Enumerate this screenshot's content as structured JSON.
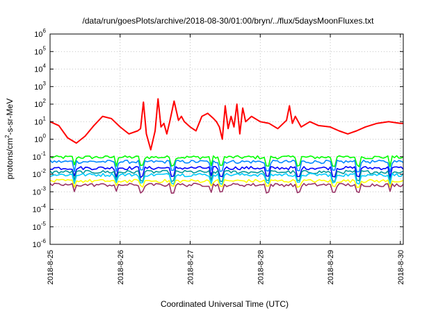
{
  "chart_data": {
    "type": "line",
    "title": "/data/run/goesPlots/archive/2018-08-30/01:00/bryn/../flux/5daysMoonFluxes.txt",
    "xlabel": "Coordinated Universal Time (UTC)",
    "ylabel": {
      "base": "protons/cm",
      "sup": "2",
      "rest": "-s-sr-MeV"
    },
    "y_scale": "log",
    "ylim": [
      1e-06,
      1000000.0
    ],
    "y_ticks": [
      {
        "exp": -6,
        "label_base": "10",
        "label_exp": "-6"
      },
      {
        "exp": -5,
        "label_base": "10",
        "label_exp": "-5"
      },
      {
        "exp": -4,
        "label_base": "10",
        "label_exp": "-4"
      },
      {
        "exp": -3,
        "label_base": "10",
        "label_exp": "-3"
      },
      {
        "exp": -2,
        "label_base": "10",
        "label_exp": "-2"
      },
      {
        "exp": -1,
        "label_base": "10",
        "label_exp": "-1"
      },
      {
        "exp": 0,
        "label_base": "10",
        "label_exp": "0"
      },
      {
        "exp": 1,
        "label_base": "10",
        "label_exp": "1"
      },
      {
        "exp": 2,
        "label_base": "10",
        "label_exp": "2"
      },
      {
        "exp": 3,
        "label_base": "10",
        "label_exp": "3"
      },
      {
        "exp": 4,
        "label_base": "10",
        "label_exp": "4"
      },
      {
        "exp": 5,
        "label_base": "10",
        "label_exp": "5"
      },
      {
        "exp": 6,
        "label_base": "10",
        "label_exp": "6"
      }
    ],
    "x_ticks": [
      "2018-8-25",
      "2018-8-26",
      "2018-8-27",
      "2018-8-28",
      "2018-8-29",
      "2018-8-30"
    ],
    "xlim": [
      "2018-08-25 00:00",
      "2018-08-30 01:00"
    ],
    "grid": true,
    "legend": "none",
    "series": [
      {
        "color": "#ff0000",
        "x": [
          "2018-08-25 00:00",
          "2018-08-25 03:00",
          "2018-08-25 06:00",
          "2018-08-25 09:00",
          "2018-08-25 12:00",
          "2018-08-25 15:00",
          "2018-08-25 18:00",
          "2018-08-25 21:00",
          "2018-08-26 00:00",
          "2018-08-26 03:00",
          "2018-08-26 06:00",
          "2018-08-26 07:00",
          "2018-08-26 08:00",
          "2018-08-26 09:00",
          "2018-08-26 10:30",
          "2018-08-26 12:00",
          "2018-08-26 13:00",
          "2018-08-26 14:00",
          "2018-08-26 15:00",
          "2018-08-26 16:00",
          "2018-08-26 17:00",
          "2018-08-26 18:30",
          "2018-08-26 20:00",
          "2018-08-26 21:00",
          "2018-08-26 22:00",
          "2018-08-27 00:00",
          "2018-08-27 02:00",
          "2018-08-27 04:00",
          "2018-08-27 06:00",
          "2018-08-27 08:00",
          "2018-08-27 09:00",
          "2018-08-27 10:00",
          "2018-08-27 11:00",
          "2018-08-27 12:00",
          "2018-08-27 13:00",
          "2018-08-27 14:00",
          "2018-08-27 15:00",
          "2018-08-27 16:00",
          "2018-08-27 17:00",
          "2018-08-27 18:00",
          "2018-08-27 19:00",
          "2018-08-27 21:00",
          "2018-08-28 00:00",
          "2018-08-28 03:00",
          "2018-08-28 06:00",
          "2018-08-28 09:00",
          "2018-08-28 10:00",
          "2018-08-28 11:00",
          "2018-08-28 12:00",
          "2018-08-28 14:00",
          "2018-08-28 17:00",
          "2018-08-28 20:00",
          "2018-08-29 00:00",
          "2018-08-29 03:00",
          "2018-08-29 06:00",
          "2018-08-29 09:00",
          "2018-08-29 12:00",
          "2018-08-29 16:00",
          "2018-08-29 20:00",
          "2018-08-30 00:00",
          "2018-08-30 01:00"
        ],
        "values": [
          10,
          6,
          1.2,
          0.6,
          1.5,
          6,
          20,
          15,
          5,
          2,
          3,
          4,
          130,
          2,
          0.25,
          3,
          200,
          5,
          8,
          2,
          10,
          150,
          12,
          20,
          10,
          5,
          3,
          20,
          30,
          15,
          10,
          5,
          1,
          80,
          4,
          20,
          5,
          100,
          2,
          60,
          10,
          20,
          10,
          8,
          4,
          12,
          80,
          8,
          20,
          5,
          10,
          6,
          5,
          3,
          2,
          3,
          5,
          8,
          10,
          8,
          8
        ]
      },
      {
        "color": "#00ff00",
        "base": 0.09,
        "dip": 0.03
      },
      {
        "color": "#0088ff",
        "base": 0.05,
        "dip": 0.015
      },
      {
        "color": "#0000ff",
        "base": 0.022,
        "dip": 0.007
      },
      {
        "color": "#009999",
        "base": 0.013,
        "dip": 0.004
      },
      {
        "color": "#00ccff",
        "base": 0.009,
        "dip": 0.003
      },
      {
        "color": "#ffff00",
        "base": 0.004,
        "dip": 0.002
      },
      {
        "color": "#993366",
        "base": 0.0024,
        "dip": 0.0009
      }
    ]
  }
}
